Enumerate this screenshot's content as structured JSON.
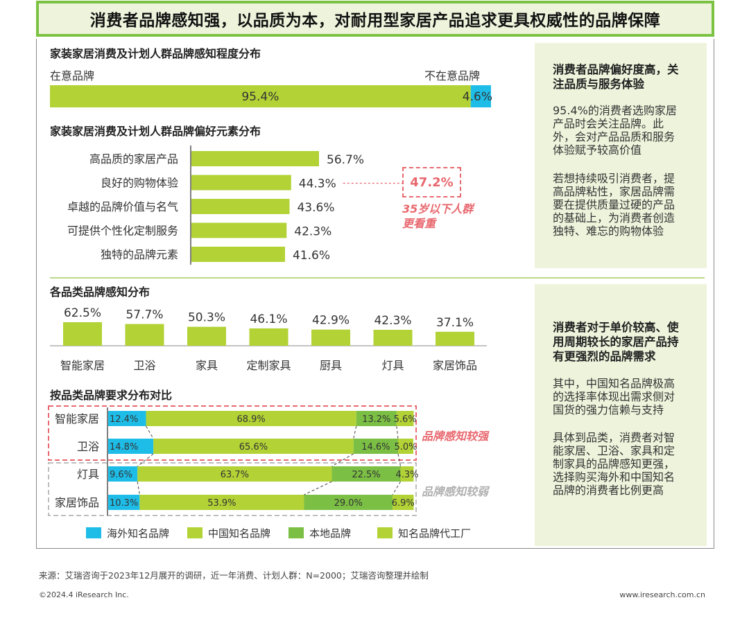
{
  "title": "消费者品牌感知强，以品质为本，对耐用型家居产品追求更具权威性的品牌保障",
  "colors": {
    "overseas": "#1ebde8",
    "china_famous": "#b2d235",
    "local": "#7bbf44",
    "oem": "#b2d235",
    "accent_red": "#e8686f",
    "panel_bg": "#eef4dc"
  },
  "chart_data": [
    {
      "type": "bar",
      "orientation": "horizontal-stacked",
      "title": "家装家居消费及计划人群品牌感知程度分布",
      "categories": [
        "在意品牌",
        "不在意品牌"
      ],
      "values": [
        95.4,
        4.6
      ],
      "value_labels": [
        "95.4%",
        "4.6%"
      ],
      "left_label": "在意品牌",
      "right_label": "不在意品牌"
    },
    {
      "type": "bar",
      "orientation": "horizontal",
      "title": "家装家居消费及计划人群品牌偏好元素分布",
      "categories": [
        "高品质的家居产品",
        "良好的购物体验",
        "卓越的品牌价值与名气",
        "可提供个性化定制服务",
        "独特的品牌元素"
      ],
      "values": [
        56.7,
        44.3,
        43.6,
        42.3,
        41.6
      ],
      "value_labels": [
        "56.7%",
        "44.3%",
        "43.6%",
        "42.3%",
        "41.6%"
      ],
      "annotation": {
        "category": "良好的购物体验",
        "value": "47.2%",
        "note": [
          "35岁以下人群",
          "更看重"
        ]
      }
    },
    {
      "type": "bar",
      "orientation": "vertical",
      "title": "各品类品牌感知分布",
      "categories": [
        "智能家居",
        "卫浴",
        "家具",
        "定制家具",
        "厨具",
        "灯具",
        "家居饰品"
      ],
      "values": [
        62.5,
        57.7,
        50.3,
        46.1,
        42.9,
        42.3,
        37.1
      ],
      "value_labels": [
        "62.5%",
        "57.7%",
        "50.3%",
        "46.1%",
        "42.9%",
        "42.3%",
        "37.1%"
      ]
    },
    {
      "type": "bar",
      "orientation": "horizontal-stacked-100",
      "title": "按品类品牌要求分布对比",
      "categories": [
        "智能家居",
        "卫浴",
        "灯具",
        "家居饰品"
      ],
      "series": [
        {
          "name": "海外知名品牌",
          "values": [
            12.4,
            14.8,
            9.6,
            10.3
          ],
          "labels": [
            "12.4%",
            "14.8%",
            "9.6%",
            "10.3%"
          ]
        },
        {
          "name": "中国知名品牌",
          "values": [
            68.9,
            65.6,
            63.7,
            53.9
          ],
          "labels": [
            "68.9%",
            "65.6%",
            "63.7%",
            "53.9%"
          ]
        },
        {
          "name": "本地品牌",
          "values": [
            13.2,
            14.6,
            22.5,
            29.0
          ],
          "labels": [
            "13.2%",
            "14.6%",
            "22.5%",
            "29.0%"
          ]
        },
        {
          "name": "知名品牌代工厂",
          "values": [
            5.6,
            5.0,
            4.3,
            6.9
          ],
          "labels": [
            "5.6%",
            "5.0%",
            "4.3%",
            "6.9%"
          ]
        }
      ],
      "groups": [
        {
          "label": "品牌感知较强",
          "categories": [
            "智能家居",
            "卫浴"
          ]
        },
        {
          "label": "品牌感知较弱",
          "categories": [
            "灯具",
            "家居饰品"
          ]
        }
      ],
      "legend": [
        "海外知名品牌",
        "中国知名品牌",
        "本地品牌",
        "知名品牌代工厂"
      ],
      "legend_position": "bottom"
    }
  ],
  "side_top": {
    "heading": [
      "消费者品牌偏好度高，关",
      "注品质与服务体验"
    ],
    "para1": [
      "95.4%的消费者选购家居",
      "产品时会关注品牌。此",
      "外，会对产品品质和服务",
      "体验赋予较高价值"
    ],
    "para2": [
      "若想持续吸引消费者，提",
      "高品牌粘性，家居品牌需",
      "要在提供质量过硬的产品",
      "的基础上，为消费者创造",
      "独特、难忘的购物体验"
    ]
  },
  "side_bottom": {
    "heading": [
      "消费者对于单价较高、使",
      "用周期较长的家居产品持",
      "有更强烈的品牌需求"
    ],
    "para1": [
      "其中，中国知名品牌极高",
      "的选择率体现出需求侧对",
      "国货的强力信赖与支持"
    ],
    "para2": [
      "具体到品类，消费者对智",
      "能家居、卫浴、家具和定",
      "制家具的品牌感知更强，",
      "选择购买海外和中国知名",
      "品牌的消费者比例更高"
    ]
  },
  "footer": {
    "source": "来源：艾瑞咨询于2023年12月展开的调研，近一年消费、计划人群：N=2000；艾瑞咨询整理并绘制",
    "copyright": "©2024.4 iResearch Inc.",
    "url": "www.iresearch.com.cn"
  }
}
